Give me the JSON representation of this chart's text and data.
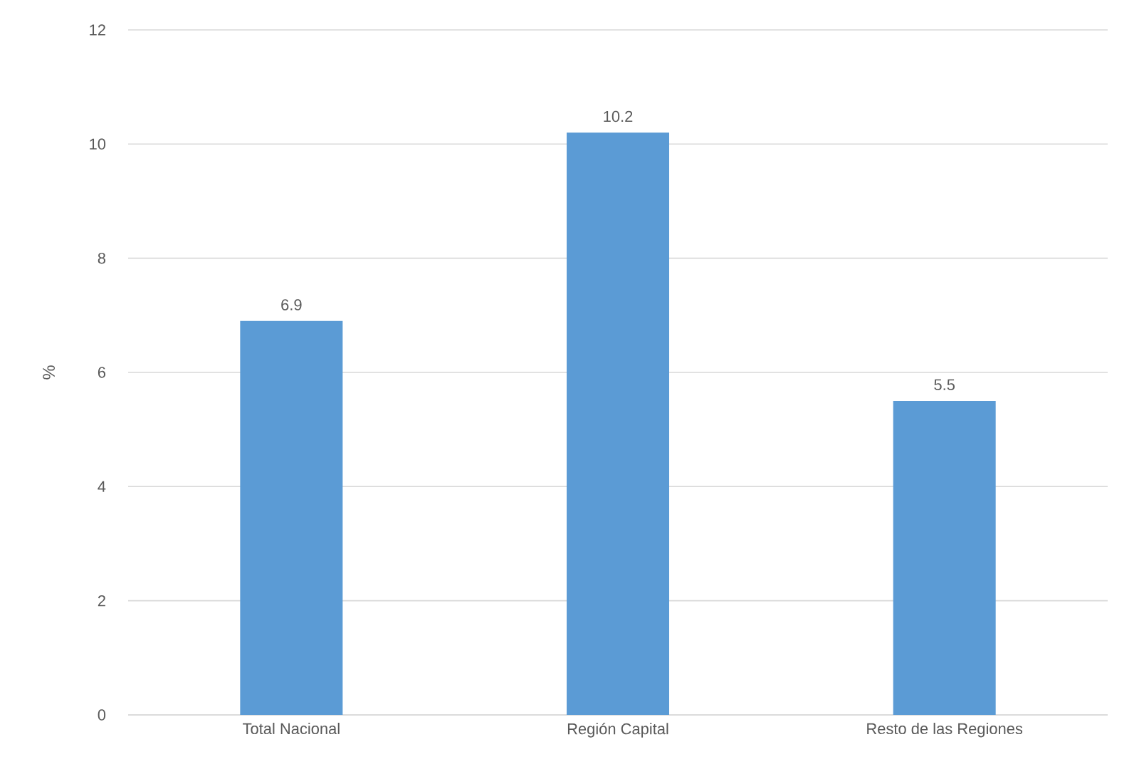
{
  "chart_data": {
    "type": "bar",
    "ylabel": "%",
    "categories": [
      "Total Nacional",
      "Región Capital",
      "Resto de las Regiones"
    ],
    "values": [
      6.9,
      10.2,
      5.5
    ],
    "color": "#5b9bd5",
    "ylim": [
      0,
      12
    ],
    "yticks": [
      0,
      2,
      4,
      6,
      8,
      10,
      12
    ],
    "grid": "y",
    "data_labels": true
  }
}
